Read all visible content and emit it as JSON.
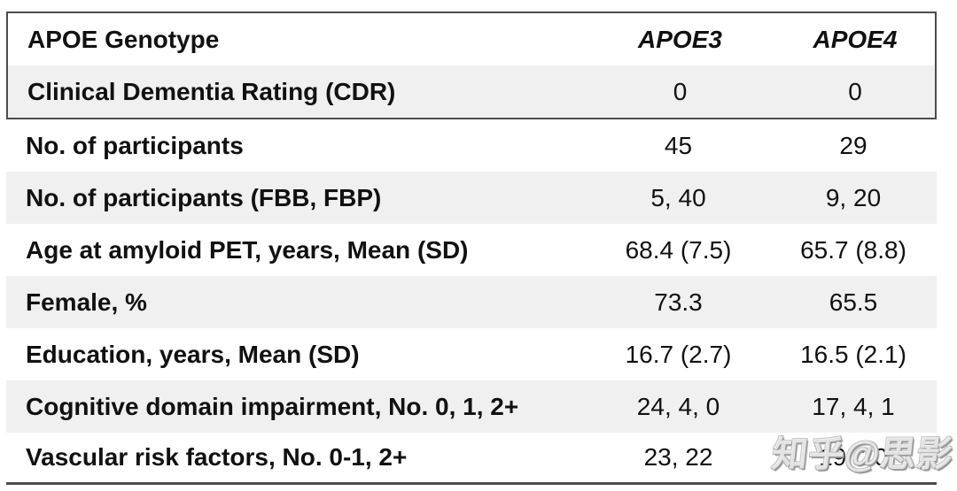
{
  "table": {
    "header": {
      "label": "APOE Genotype",
      "col_apoe3": "APOE3",
      "col_apoe4": "APOE4"
    },
    "rows": [
      {
        "label": "Clinical Dementia Rating (CDR)",
        "apoe3": "0",
        "apoe4": "0"
      },
      {
        "label": "No. of participants",
        "apoe3": "45",
        "apoe4": "29"
      },
      {
        "label": "No. of participants (FBB, FBP)",
        "apoe3": "5, 40",
        "apoe4": "9, 20"
      },
      {
        "label": "Age at amyloid PET, years, Mean (SD)",
        "apoe3": "68.4 (7.5)",
        "apoe4": "65.7 (8.8)"
      },
      {
        "label": "Female, %",
        "apoe3": "73.3",
        "apoe4": "65.5"
      },
      {
        "label": "Education, years, Mean (SD)",
        "apoe3": "16.7 (2.7)",
        "apoe4": "16.5 (2.1)"
      },
      {
        "label": "Cognitive domain impairment, No. 0, 1, 2+",
        "apoe3": "24, 4, 0",
        "apoe4": "17, 4, 1"
      },
      {
        "label": "Vascular risk factors, No. 0-1, 2+",
        "apoe3": "23, 22",
        "apoe4": "19, 10"
      }
    ],
    "colors": {
      "row_shade": "#f0f0f0",
      "border": "#4c4c4c",
      "text": "#111111",
      "watermark_outline": "#9a9a9a"
    }
  },
  "watermark": {
    "text": "知乎@思影"
  }
}
